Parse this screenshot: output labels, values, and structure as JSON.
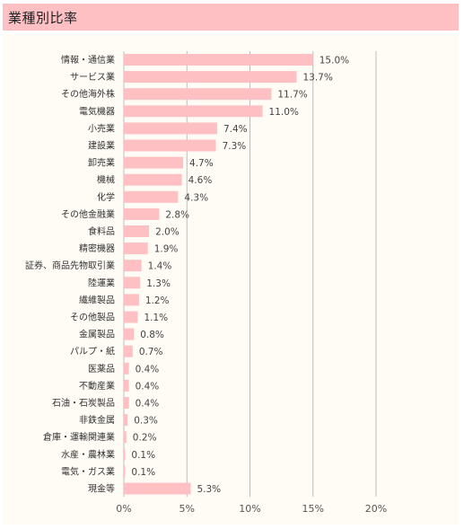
{
  "header": {
    "title": "業種別比率"
  },
  "colors": {
    "bar": "#ffc0c4",
    "title_bg": "#ffc0c4",
    "panel_bg": "#fffcf6",
    "grid": "#bbbbbb"
  },
  "chart_data": {
    "type": "bar",
    "orientation": "horizontal",
    "title": "業種別比率",
    "categories": [
      "情報・通信業",
      "サービス業",
      "その他海外株",
      "電気機器",
      "小売業",
      "建設業",
      "卸売業",
      "機械",
      "化学",
      "その他金融業",
      "食料品",
      "精密機器",
      "証券、商品先物取引業",
      "陸運業",
      "繊維製品",
      "その他製品",
      "金属製品",
      "パルプ・紙",
      "医薬品",
      "不動産業",
      "石油・石炭製品",
      "非鉄金属",
      "倉庫・運輸関連業",
      "水産・農林業",
      "電気・ガス業",
      "現金等"
    ],
    "values": [
      15.0,
      13.7,
      11.7,
      11.0,
      7.4,
      7.3,
      4.7,
      4.6,
      4.3,
      2.8,
      2.0,
      1.9,
      1.4,
      1.3,
      1.2,
      1.1,
      0.8,
      0.7,
      0.4,
      0.4,
      0.4,
      0.3,
      0.2,
      0.1,
      0.1,
      5.3
    ],
    "value_labels": [
      "15.0%",
      "13.7%",
      "11.7%",
      "11.0%",
      "7.4%",
      "7.3%",
      "4.7%",
      "4.6%",
      "4.3%",
      "2.8%",
      "2.0%",
      "1.9%",
      "1.4%",
      "1.3%",
      "1.2%",
      "1.1%",
      "0.8%",
      "0.7%",
      "0.4%",
      "0.4%",
      "0.4%",
      "0.3%",
      "0.2%",
      "0.1%",
      "0.1%",
      "5.3%"
    ],
    "xlim": [
      0,
      20
    ],
    "x_ticks": [
      0,
      5,
      10,
      15,
      20
    ],
    "x_tick_labels": [
      "0%",
      "5%",
      "10%",
      "15%",
      "20%"
    ],
    "grid": true,
    "xlabel": "",
    "ylabel": ""
  }
}
